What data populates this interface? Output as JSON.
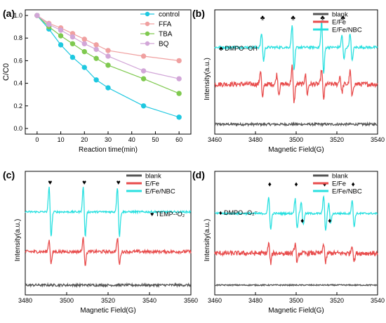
{
  "colors": {
    "control": "#1ec8e0",
    "FFA": "#f0a0a0",
    "TBA": "#7fc94f",
    "BQ": "#d2a6d8",
    "blank": "#555555",
    "EFe": "#e84c4c",
    "EFeNBC": "#2ae0e0"
  },
  "chart_data": [
    {
      "panel": "(a)",
      "type": "line",
      "xlabel": "Reaction time(min)",
      "ylabel": "C/C0",
      "xlim": [
        -5,
        65
      ],
      "ylim": [
        -0.05,
        1.05
      ],
      "x_ticks": [
        0,
        10,
        20,
        30,
        40,
        50,
        60
      ],
      "y_ticks": [
        0.0,
        0.2,
        0.4,
        0.6,
        0.8,
        1.0
      ],
      "y_tick_labels": [
        "0.0",
        "0.2",
        "0.4",
        "0.6",
        "0.8",
        "1.0"
      ],
      "legend_position": "top-right",
      "x": [
        0,
        5,
        10,
        15,
        20,
        25,
        30,
        45,
        60
      ],
      "series": [
        {
          "name": "control",
          "values": [
            1.0,
            0.88,
            0.74,
            0.63,
            0.54,
            0.43,
            0.36,
            0.2,
            0.1
          ]
        },
        {
          "name": "FFA",
          "values": [
            1.0,
            0.93,
            0.89,
            0.84,
            0.79,
            0.74,
            0.69,
            0.64,
            0.6
          ]
        },
        {
          "name": "TBA",
          "values": [
            1.0,
            0.9,
            0.82,
            0.75,
            0.68,
            0.62,
            0.56,
            0.44,
            0.31
          ]
        },
        {
          "name": "BQ",
          "values": [
            1.0,
            0.92,
            0.87,
            0.81,
            0.75,
            0.7,
            0.64,
            0.51,
            0.44
          ]
        }
      ]
    },
    {
      "panel": "(b)",
      "type": "line",
      "xlabel": "Magnetic Field(G)",
      "ylabel": "Intensity(a.u.)",
      "xlim": [
        3460,
        3540
      ],
      "x_ticks": [
        3460,
        3480,
        3500,
        3520,
        3540
      ],
      "legend_position": "top-right",
      "annotation": "♣ DMPO-·OH",
      "marker_symbol": "♣",
      "peak_markers": [
        3483.5,
        3498.5,
        3513,
        3523
      ],
      "series": [
        {
          "name": "blank",
          "offset": 0.0,
          "amplitude": 0.03,
          "peaks": []
        },
        {
          "name": "E/Fe",
          "offset": 0.5,
          "amplitude": 0.06,
          "peaks": [
            [
              3483,
              0.17
            ],
            [
              3491,
              0.12
            ],
            [
              3498.5,
              0.22
            ],
            [
              3505,
              0.12
            ],
            [
              3513,
              0.18
            ],
            [
              3522,
              0.1
            ],
            [
              3527,
              0.16
            ]
          ]
        },
        {
          "name": "E/Fe/NBC",
          "offset": 0.96,
          "amplitude": 0.03,
          "peaks": [
            [
              3483.5,
              0.17
            ],
            [
              3498.5,
              0.28
            ],
            [
              3513,
              0.32
            ],
            [
              3523,
              0.15
            ],
            [
              3527,
              0.17
            ]
          ]
        }
      ]
    },
    {
      "panel": "(c)",
      "type": "line",
      "xlabel": "Magnetic Field(G)",
      "ylabel": "Intensity(a.u.)",
      "xlim": [
        3480,
        3560
      ],
      "x_ticks": [
        3480,
        3500,
        3520,
        3540,
        3560
      ],
      "legend_position": "top-right",
      "annotation": "♥ TEMP-¹O₂",
      "marker_symbol": "♥",
      "peak_markers": [
        3492,
        3508.5,
        3525
      ],
      "series": [
        {
          "name": "blank",
          "offset": 0.0,
          "amplitude": 0.03,
          "peaks": []
        },
        {
          "name": "E/Fe",
          "offset": 0.42,
          "amplitude": 0.04,
          "peaks": [
            [
              3492,
              0.14
            ],
            [
              3508.5,
              0.16
            ],
            [
              3525,
              0.16
            ]
          ]
        },
        {
          "name": "E/Fe/NBC",
          "offset": 0.92,
          "amplitude": 0.025,
          "peaks": [
            [
              3492,
              0.3
            ],
            [
              3508.5,
              0.3
            ],
            [
              3525,
              0.3
            ]
          ]
        }
      ]
    },
    {
      "panel": "(d)",
      "type": "line",
      "xlabel": "Magnetic Field(G)",
      "ylabel": "Intensity(a.u.)",
      "xlim": [
        3460,
        3540
      ],
      "x_ticks": [
        3460,
        3480,
        3500,
        3520,
        3540
      ],
      "legend_position": "top-right",
      "annotation": "♦ DMPO-·O₂⁻",
      "marker_symbol": "♦",
      "peak_markers": [
        3487,
        3500,
        3503,
        3514,
        3516.5,
        3528
      ],
      "series": [
        {
          "name": "blank",
          "offset": 0.0,
          "amplitude": 0.015,
          "peaks": []
        },
        {
          "name": "E/Fe",
          "offset": 0.4,
          "amplitude": 0.06,
          "peaks": [
            [
              3487,
              0.12
            ],
            [
              3500,
              0.12
            ],
            [
              3514,
              0.12
            ],
            [
              3528,
              0.1
            ]
          ]
        },
        {
          "name": "E/Fe/NBC",
          "offset": 0.9,
          "amplitude": 0.025,
          "peaks": [
            [
              3487,
              0.2
            ],
            [
              3500,
              0.18
            ],
            [
              3503,
              0.14
            ],
            [
              3514,
              0.22
            ],
            [
              3516.5,
              0.12
            ],
            [
              3528,
              0.16
            ]
          ]
        }
      ]
    }
  ]
}
